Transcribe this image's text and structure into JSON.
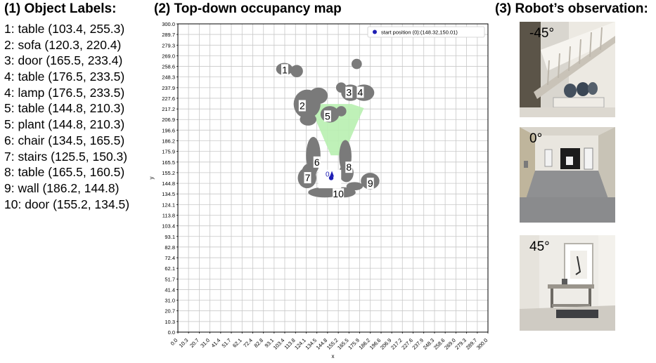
{
  "headings": {
    "labels": "(1) Object Labels:",
    "map": "(2) Top-down occupancy map",
    "observation": "(3) Robot’s observation:"
  },
  "object_labels": [
    "1: table (103.4, 255.3)",
    "2: sofa (120.3, 220.4)",
    "3: door (165.5, 233.4)",
    "4: table (176.5, 233.5)",
    "4: lamp (176.5, 233.5)",
    "5: table (144.8, 210.3)",
    "5: plant (144.8, 210.3)",
    "6: chair (134.5, 165.5)",
    "7: stairs (125.5, 150.3)",
    "8: table (165.5, 160.5)",
    "9: wall (186.2, 144.8)",
    "10: door (155.2, 134.5)"
  ],
  "chart_data": {
    "type": "scatter",
    "xlabel": "x",
    "ylabel": "y",
    "xlim": [
      0,
      300
    ],
    "ylim": [
      0,
      300
    ],
    "grid": true,
    "ticks": [
      "0.0",
      "10.3",
      "20.7",
      "31.0",
      "41.4",
      "51.7",
      "62.1",
      "72.4",
      "82.8",
      "93.1",
      "103.4",
      "113.8",
      "124.1",
      "134.5",
      "144.8",
      "155.2",
      "165.5",
      "175.9",
      "186.2",
      "196.6",
      "206.9",
      "217.2",
      "227.6",
      "237.9",
      "248.3",
      "258.6",
      "269.0",
      "279.3",
      "289.7",
      "300.0"
    ],
    "legend": {
      "label": "start position (0):(148.32,150.01)",
      "position": "top-right"
    },
    "start_point": {
      "x": 148.32,
      "y": 150.01,
      "label": "0"
    },
    "map_labels": [
      {
        "text": "1",
        "x": 103.4,
        "y": 255.3
      },
      {
        "text": "2",
        "x": 120.3,
        "y": 220.4
      },
      {
        "text": "3",
        "x": 165.5,
        "y": 233.4
      },
      {
        "text": "4",
        "x": 176.5,
        "y": 233.5
      },
      {
        "text": "5",
        "x": 144.8,
        "y": 210.3
      },
      {
        "text": "6",
        "x": 134.5,
        "y": 165.5
      },
      {
        "text": "7",
        "x": 125.5,
        "y": 150.3
      },
      {
        "text": "8",
        "x": 165.5,
        "y": 160.5
      },
      {
        "text": "9",
        "x": 186.2,
        "y": 144.8
      },
      {
        "text": "10",
        "x": 155.2,
        "y": 134.5
      }
    ],
    "colors": {
      "obstacle": "#7a7a7a",
      "free": "#ffffff",
      "fov": "#b8f0b0",
      "marker": "#1f1fb4"
    }
  },
  "observations": [
    {
      "angle": "-45°"
    },
    {
      "angle": "0°"
    },
    {
      "angle": "45°"
    }
  ]
}
